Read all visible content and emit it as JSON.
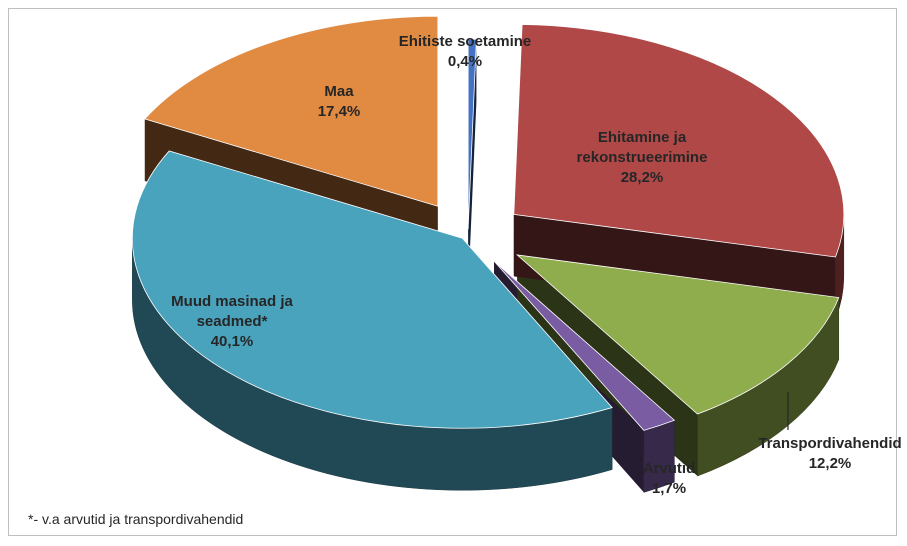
{
  "chart_data": {
    "type": "pie",
    "style": "3d-exploded",
    "slices": [
      {
        "label_lines": [
          "Ehitiste soetamine"
        ],
        "value_text": "0,4%",
        "value": 0.4,
        "color": "#4472c4"
      },
      {
        "label_lines": [
          "Ehitamine ja",
          "rekonstrueerimine"
        ],
        "value_text": "28,2%",
        "value": 28.2,
        "color": "#b04848"
      },
      {
        "label_lines": [
          "Transpordivahendid"
        ],
        "value_text": "12,2%",
        "value": 12.2,
        "color": "#8fad4c"
      },
      {
        "label_lines": [
          "Arvutid"
        ],
        "value_text": "1,7%",
        "value": 1.7,
        "color": "#7a5ca3"
      },
      {
        "label_lines": [
          "Muud masinad ja",
          "seadmed*"
        ],
        "value_text": "40,1%",
        "value": 40.1,
        "color": "#4aa3bd"
      },
      {
        "label_lines": [
          "Maa"
        ],
        "value_text": "17,4%",
        "value": 17.4,
        "color": "#e08a42"
      }
    ]
  },
  "footnote": "*- v.a arvutid ja transpordivahendid"
}
